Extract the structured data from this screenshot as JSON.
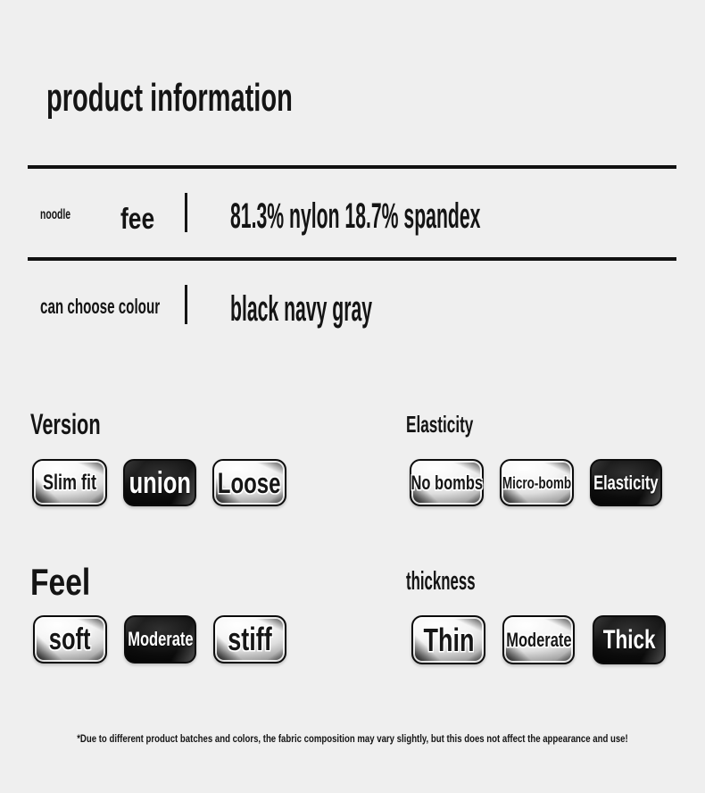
{
  "title": "product information",
  "specs": {
    "fabric": {
      "category": "noodle",
      "name": "fee",
      "value": "81.3% nylon 18.7% spandex"
    },
    "colour": {
      "name": "can choose colour",
      "value": "black navy gray"
    }
  },
  "groups": {
    "version": {
      "title": "Version",
      "options": [
        {
          "label": "Slim fit",
          "variant": "light"
        },
        {
          "label": "union",
          "variant": "dark"
        },
        {
          "label": "Loose",
          "variant": "light"
        }
      ]
    },
    "elasticity": {
      "title": "Elasticity",
      "options": [
        {
          "label": "No bombs",
          "variant": "light"
        },
        {
          "label": "Micro-bomb",
          "variant": "light"
        },
        {
          "label": "Elasticity",
          "variant": "dark"
        }
      ]
    },
    "feel": {
      "title": "Feel",
      "options": [
        {
          "label": "soft",
          "variant": "light"
        },
        {
          "label": "Moderate",
          "variant": "dark"
        },
        {
          "label": "stiff",
          "variant": "light"
        }
      ]
    },
    "thickness": {
      "title": "thickness",
      "options": [
        {
          "label": "Thin",
          "variant": "light"
        },
        {
          "label": "Moderate",
          "variant": "light"
        },
        {
          "label": "Thick",
          "variant": "dark"
        }
      ]
    }
  },
  "footnote": "*Due to different product batches and colors, the fabric composition may vary slightly, but this does not affect the appearance and use!",
  "palette": {
    "background": "#efefef",
    "text": "#141414",
    "rule": "#111111",
    "button_dark": "#0c0c0c",
    "button_light_high": "#ffffff",
    "button_light_low": "#7a7a7a"
  }
}
